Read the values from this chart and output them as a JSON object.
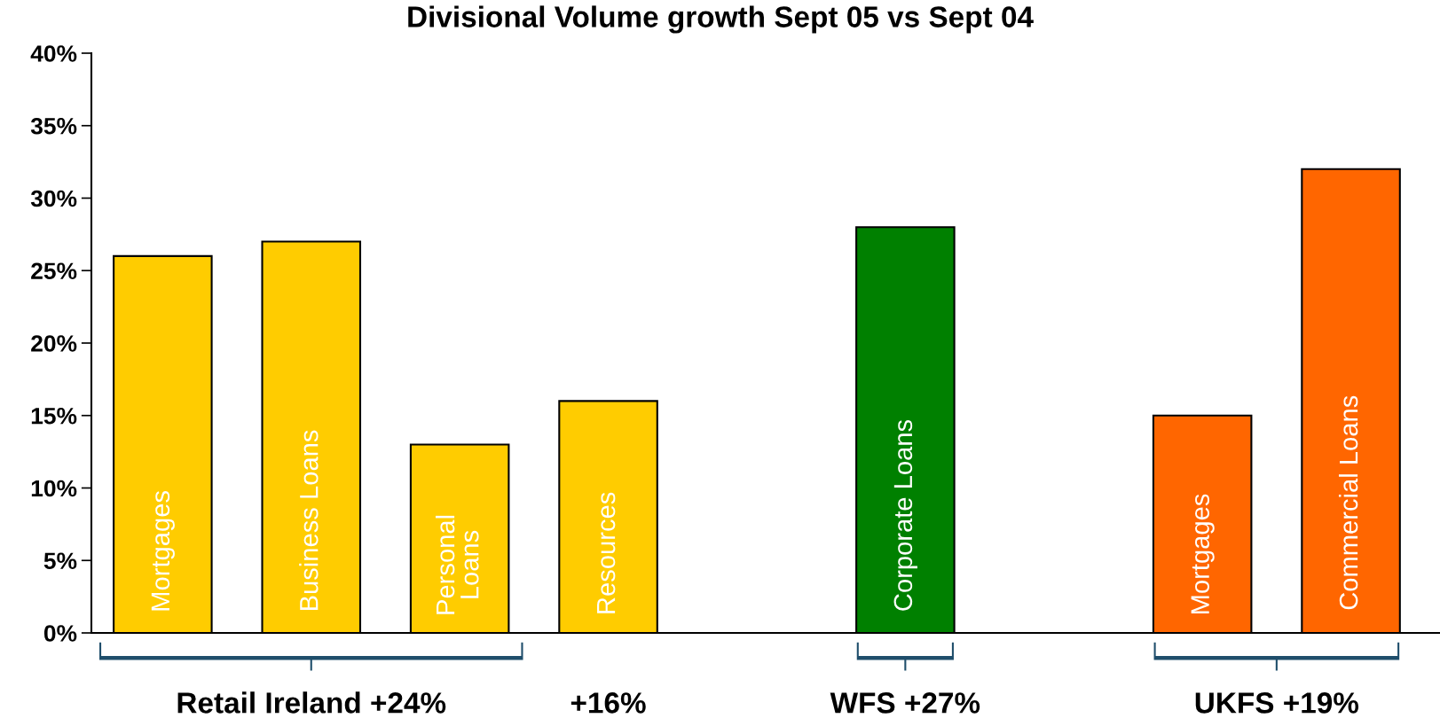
{
  "chart_data": {
    "type": "bar",
    "title": "Divisional Volume growth Sept 05 vs Sept 04",
    "categories": [
      "Mortgages",
      "Business Loans",
      "Personal\nLoans",
      "Resources",
      null,
      "Corporate Loans",
      null,
      "Mortgages",
      "Commercial Loans"
    ],
    "values": [
      26,
      27,
      13,
      16,
      null,
      28,
      null,
      15,
      32
    ],
    "colors": [
      "#ffcc00",
      "#ffcc00",
      "#ffcc00",
      "#ffcc00",
      null,
      "#008000",
      null,
      "#ff6600",
      "#ff6600"
    ],
    "ylim": [
      0,
      40
    ],
    "yticks": [
      {
        "value": 0,
        "label": "0%"
      },
      {
        "value": 5,
        "label": "5%"
      },
      {
        "value": 10,
        "label": "10%"
      },
      {
        "value": 15,
        "label": "15%"
      },
      {
        "value": 20,
        "label": "20%"
      },
      {
        "value": 25,
        "label": "25%"
      },
      {
        "value": 30,
        "label": "30%"
      },
      {
        "value": 35,
        "label": "35%"
      },
      {
        "value": 40,
        "label": "40%"
      }
    ],
    "grid": false,
    "legend": false,
    "annotations": [
      "Retail Ireland +24%",
      "+16%",
      "WFS +27%",
      "UKFS +19%"
    ]
  }
}
